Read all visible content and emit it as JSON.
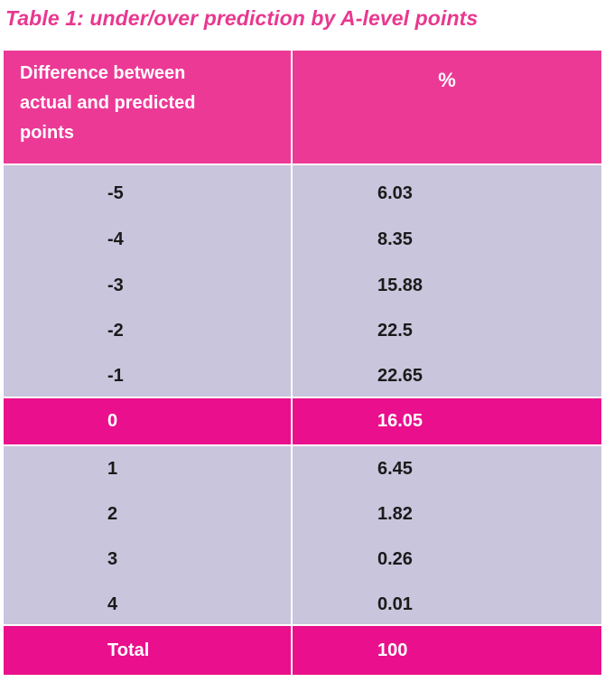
{
  "title": "Table 1: under/over prediction by A-level points",
  "table": {
    "headers": {
      "difference_lines": [
        "Difference between",
        "actual and predicted",
        "points"
      ],
      "percent": "%"
    },
    "rows_upper": [
      {
        "difference": "-5",
        "percent": "6.03"
      },
      {
        "difference": "-4",
        "percent": "8.35"
      },
      {
        "difference": "-3",
        "percent": "15.88"
      },
      {
        "difference": "-2",
        "percent": "22.5"
      },
      {
        "difference": "-1",
        "percent": "22.65"
      }
    ],
    "row_zero": {
      "difference": "0",
      "percent": "16.05"
    },
    "rows_lower": [
      {
        "difference": "1",
        "percent": "6.45"
      },
      {
        "difference": "2",
        "percent": "1.82"
      },
      {
        "difference": "3",
        "percent": "0.26"
      },
      {
        "difference": "4",
        "percent": "0.01"
      }
    ],
    "total": {
      "label": "Total",
      "percent": "100"
    }
  },
  "colors": {
    "title": "#e8388f",
    "header_bg": "#ec3996",
    "highlight_bg": "#ea0f8c",
    "body_bg": "#c9c5dd"
  }
}
